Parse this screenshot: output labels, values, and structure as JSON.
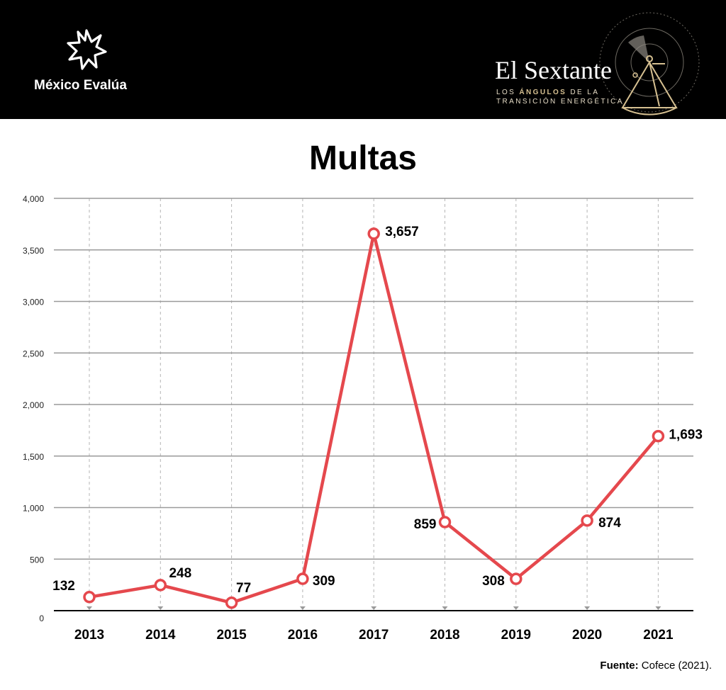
{
  "header": {
    "brand_left": "México Evalúa",
    "brand_right_title": "El Sextante",
    "brand_right_sub_1_pre": "LOS",
    "brand_right_sub_1_bold": "ÁNGULOS",
    "brand_right_sub_1_post": "DE LA",
    "brand_right_sub_2": "TRANSICIÓN ENERGÉTICA",
    "background": "#000000"
  },
  "chart_data": {
    "type": "line",
    "title": "Multas",
    "categories": [
      "2013",
      "2014",
      "2015",
      "2016",
      "2017",
      "2018",
      "2019",
      "2020",
      "2021"
    ],
    "series": [
      {
        "values": [
          132,
          248,
          77,
          309,
          3657,
          859,
          308,
          874,
          1693
        ],
        "labels": [
          "132",
          "248",
          "77",
          "309",
          "3,657",
          "859",
          "308",
          "874",
          "1,693"
        ],
        "color": "#e5484d"
      }
    ],
    "y_ticks": [
      0,
      500,
      1000,
      1500,
      2000,
      2500,
      3000,
      3500,
      4000
    ],
    "y_tick_labels": [
      "0",
      "500",
      "1,000",
      "1,500",
      "2,000",
      "2,500",
      "3,000",
      "3,500",
      "4,000"
    ],
    "ylim": [
      0,
      4000
    ],
    "grid": true,
    "xlabel": "",
    "ylabel": ""
  },
  "source": {
    "label": "Fuente:",
    "text": "Cofece (2021)."
  }
}
